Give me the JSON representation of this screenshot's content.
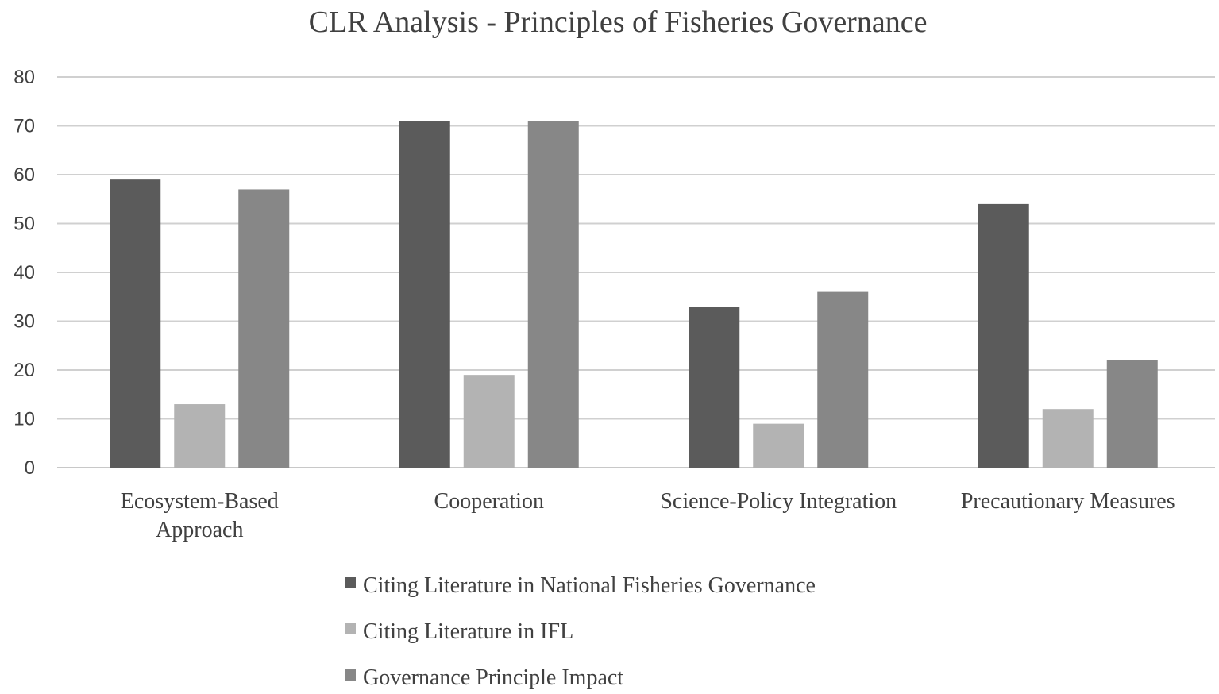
{
  "chart_data": {
    "type": "bar",
    "title": "CLR Analysis - Principles of Fisheries Governance",
    "categories": [
      [
        "Ecosystem-Based",
        "Approach"
      ],
      [
        "Cooperation"
      ],
      [
        "Science-Policy Integration"
      ],
      [
        "Precautionary Measures"
      ]
    ],
    "series": [
      {
        "name": "Citing Literature in National Fisheries Governance",
        "color": "#5b5b5b",
        "values": [
          59,
          71,
          33,
          54
        ]
      },
      {
        "name": "Citing Literature in IFL",
        "color": "#b3b3b3",
        "values": [
          13,
          19,
          9,
          12
        ]
      },
      {
        "name": "Governance Principle Impact",
        "color": "#878787",
        "values": [
          57,
          71,
          36,
          22
        ]
      }
    ],
    "ylim": [
      0,
      80
    ],
    "yticks": [
      0,
      10,
      20,
      30,
      40,
      50,
      60,
      70,
      80
    ],
    "grid": true,
    "legend_position": "bottom",
    "xlabel": "",
    "ylabel": ""
  }
}
